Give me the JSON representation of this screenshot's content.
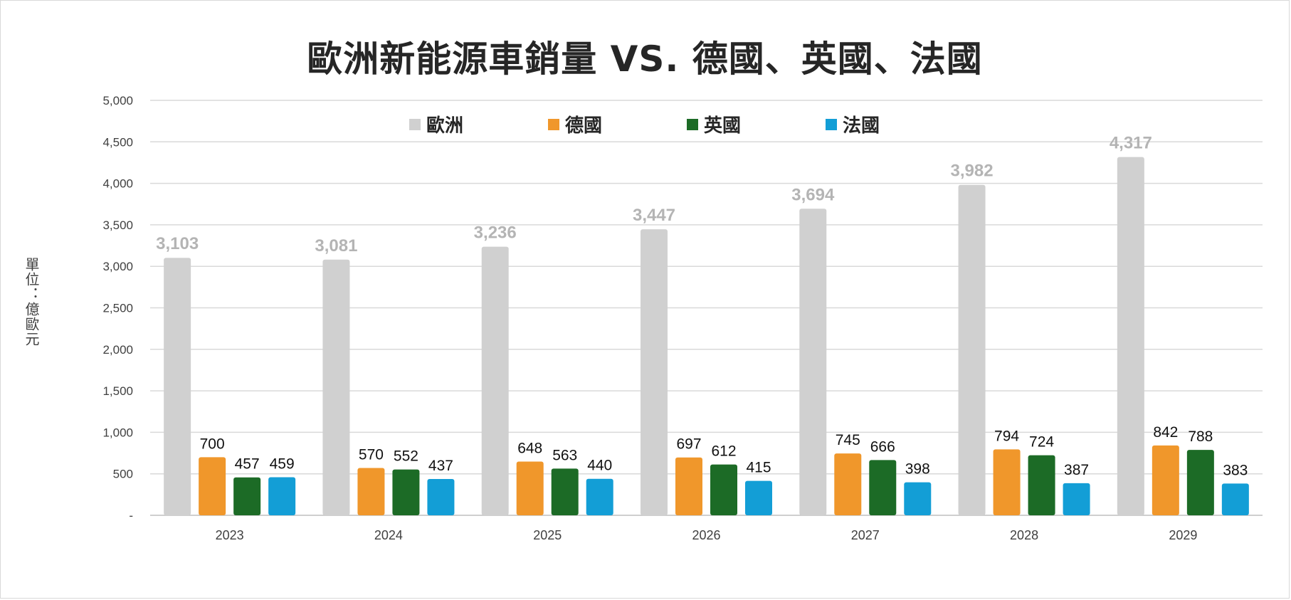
{
  "chart_data": {
    "type": "bar",
    "title": "歐洲新能源車銷量 VS. 德國、英國、法國",
    "ylabel": "單位：億歐元",
    "xlabel": "",
    "categories": [
      "2023",
      "2024",
      "2025",
      "2026",
      "2027",
      "2028",
      "2029"
    ],
    "ylim": [
      0,
      5000
    ],
    "yticks": [
      {
        "value": 0,
        "label": "-"
      },
      {
        "value": 500,
        "label": "500"
      },
      {
        "value": 1000,
        "label": "1,000"
      },
      {
        "value": 1500,
        "label": "1,500"
      },
      {
        "value": 2000,
        "label": "2,000"
      },
      {
        "value": 2500,
        "label": "2,500"
      },
      {
        "value": 3000,
        "label": "3,000"
      },
      {
        "value": 3500,
        "label": "3,500"
      },
      {
        "value": 4000,
        "label": "4,000"
      },
      {
        "value": 4500,
        "label": "4,500"
      },
      {
        "value": 5000,
        "label": "5,000"
      }
    ],
    "grid": true,
    "legend_position": "top",
    "series": [
      {
        "name": "歐洲",
        "color": "#d0d0d0",
        "label_color": "#b4b4b4",
        "label_bold": true,
        "values": [
          3103,
          3081,
          3236,
          3447,
          3694,
          3982,
          4317
        ],
        "labels": [
          "3,103",
          "3,081",
          "3,236",
          "3,447",
          "3,694",
          "3,982",
          "4,317"
        ]
      },
      {
        "name": "德國",
        "color": "#f0972b",
        "label_color": "#111111",
        "label_bold": false,
        "values": [
          700,
          570,
          648,
          697,
          745,
          794,
          842
        ],
        "labels": [
          "700",
          "570",
          "648",
          "697",
          "745",
          "794",
          "842"
        ]
      },
      {
        "name": "英國",
        "color": "#1c6b26",
        "label_color": "#111111",
        "label_bold": false,
        "values": [
          457,
          552,
          563,
          612,
          666,
          724,
          788
        ],
        "labels": [
          "457",
          "552",
          "563",
          "612",
          "666",
          "724",
          "788"
        ]
      },
      {
        "name": "法國",
        "color": "#139ed6",
        "label_color": "#111111",
        "label_bold": false,
        "values": [
          459,
          437,
          440,
          415,
          398,
          387,
          383
        ],
        "labels": [
          "459",
          "437",
          "440",
          "415",
          "398",
          "387",
          "383"
        ]
      }
    ]
  }
}
